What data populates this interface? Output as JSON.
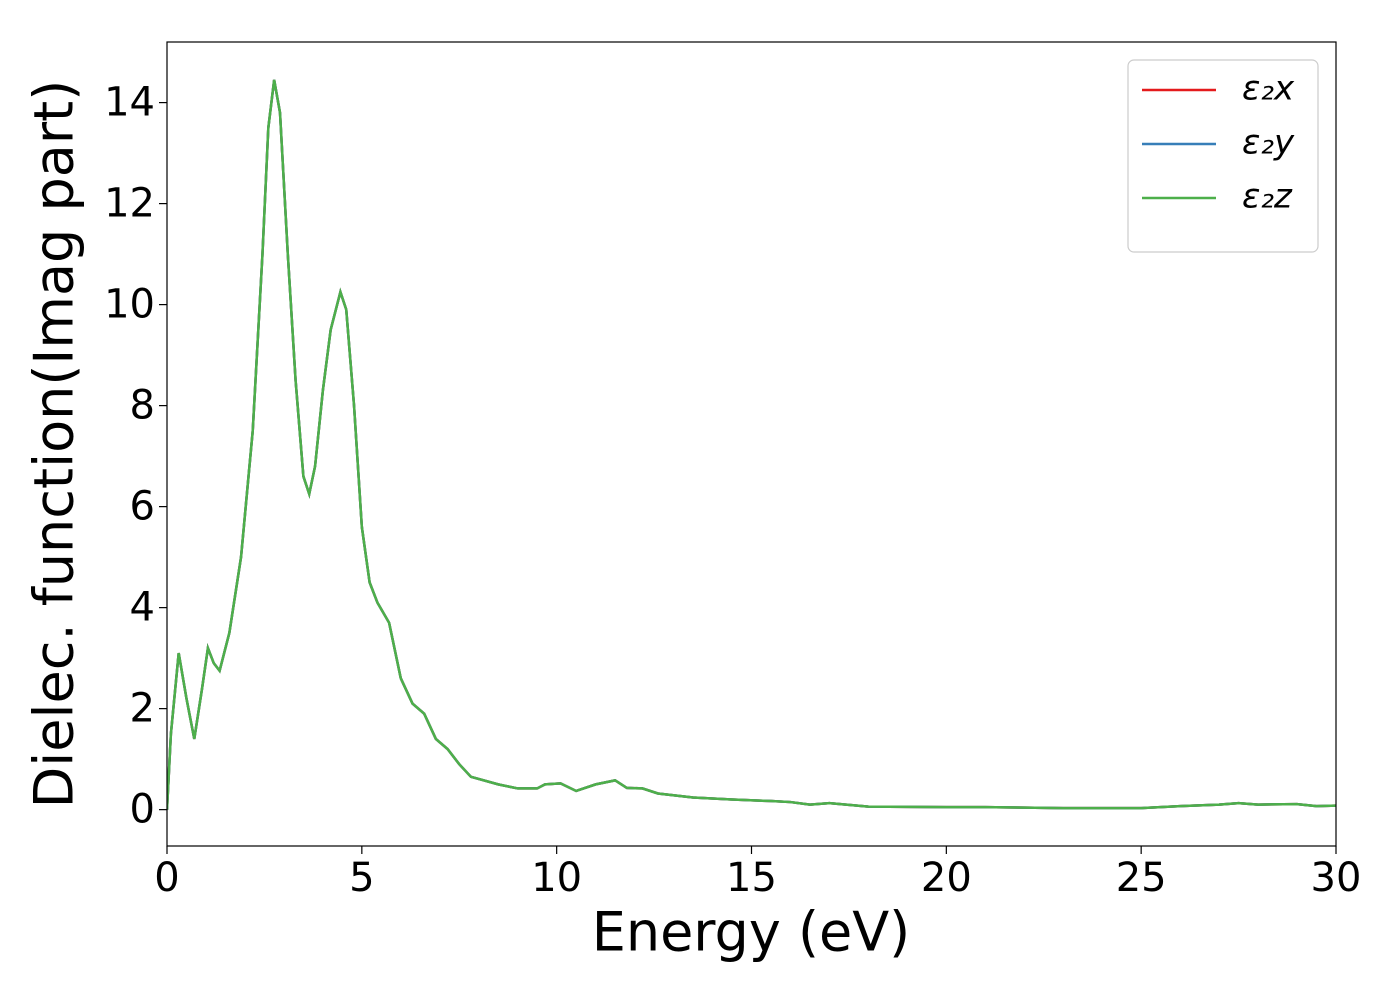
{
  "chart_data": {
    "type": "line",
    "xlabel": "Energy (eV)",
    "ylabel": "Dielec. function(Imag part)",
    "x": [
      0,
      0.1,
      0.3,
      0.5,
      0.7,
      0.9,
      1.05,
      1.2,
      1.35,
      1.6,
      1.9,
      2.2,
      2.45,
      2.6,
      2.75,
      2.9,
      3.1,
      3.3,
      3.5,
      3.65,
      3.8,
      4.0,
      4.2,
      4.45,
      4.6,
      4.8,
      5.0,
      5.2,
      5.4,
      5.7,
      6.0,
      6.3,
      6.6,
      6.9,
      7.2,
      7.5,
      7.8,
      8.5,
      9,
      9.5,
      9.7,
      10.1,
      10.5,
      11,
      11.5,
      11.8,
      12.2,
      12.6,
      13.5,
      14.5,
      15.5,
      16,
      16.5,
      17,
      18,
      20,
      21,
      23,
      25,
      26,
      27,
      27.5,
      28,
      29,
      29.5,
      30
    ],
    "series": [
      {
        "name": "ε₂x",
        "color": "#e41a1c",
        "values": [
          0,
          1.5,
          3.1,
          2.2,
          1.4,
          2.4,
          3.2,
          2.9,
          2.75,
          3.5,
          5.0,
          7.5,
          11,
          13.5,
          14.45,
          13.8,
          11,
          8.5,
          6.6,
          6.25,
          6.8,
          8.3,
          9.5,
          10.25,
          9.9,
          8,
          5.6,
          4.5,
          4.1,
          3.7,
          2.6,
          2.1,
          1.9,
          1.4,
          1.2,
          0.9,
          0.65,
          0.5,
          0.42,
          0.42,
          0.5,
          0.52,
          0.37,
          0.5,
          0.58,
          0.43,
          0.42,
          0.32,
          0.24,
          0.2,
          0.17,
          0.15,
          0.1,
          0.13,
          0.06,
          0.05,
          0.05,
          0.03,
          0.03,
          0.07,
          0.1,
          0.13,
          0.1,
          0.11,
          0.07,
          0.08
        ]
      },
      {
        "name": "ε₂y",
        "color": "#377eb8",
        "values": [
          0,
          1.5,
          3.1,
          2.2,
          1.4,
          2.4,
          3.2,
          2.9,
          2.75,
          3.5,
          5.0,
          7.5,
          11,
          13.5,
          14.45,
          13.8,
          11,
          8.5,
          6.6,
          6.25,
          6.8,
          8.3,
          9.5,
          10.25,
          9.9,
          8,
          5.6,
          4.5,
          4.1,
          3.7,
          2.6,
          2.1,
          1.9,
          1.4,
          1.2,
          0.9,
          0.65,
          0.5,
          0.42,
          0.42,
          0.5,
          0.52,
          0.37,
          0.5,
          0.58,
          0.43,
          0.42,
          0.32,
          0.24,
          0.2,
          0.17,
          0.15,
          0.1,
          0.13,
          0.06,
          0.05,
          0.05,
          0.03,
          0.03,
          0.07,
          0.1,
          0.13,
          0.1,
          0.11,
          0.07,
          0.08
        ]
      },
      {
        "name": "ε₂z",
        "color": "#4daf4a",
        "values": [
          0,
          1.5,
          3.1,
          2.2,
          1.4,
          2.4,
          3.2,
          2.9,
          2.75,
          3.5,
          5.0,
          7.5,
          11,
          13.5,
          14.45,
          13.8,
          11,
          8.5,
          6.6,
          6.25,
          6.8,
          8.3,
          9.5,
          10.25,
          9.9,
          8,
          5.6,
          4.5,
          4.1,
          3.7,
          2.6,
          2.1,
          1.9,
          1.4,
          1.2,
          0.9,
          0.65,
          0.5,
          0.42,
          0.42,
          0.5,
          0.52,
          0.37,
          0.5,
          0.58,
          0.43,
          0.42,
          0.32,
          0.24,
          0.2,
          0.17,
          0.15,
          0.1,
          0.13,
          0.06,
          0.05,
          0.05,
          0.03,
          0.03,
          0.07,
          0.1,
          0.13,
          0.1,
          0.11,
          0.07,
          0.08
        ]
      }
    ],
    "xlim": [
      0,
      30
    ],
    "xticks": [
      0,
      5,
      10,
      15,
      20,
      25,
      30
    ],
    "ylim": [
      -0.72,
      15.2
    ],
    "yticks": [
      0,
      2,
      4,
      6,
      8,
      10,
      12,
      14
    ],
    "legend": "upper right"
  }
}
